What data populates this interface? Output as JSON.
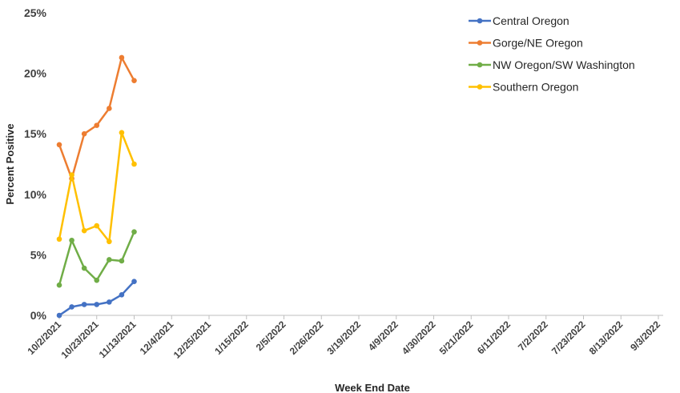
{
  "chart_data": {
    "type": "line",
    "xlabel": "Week End Date",
    "ylabel": "Percent Positive",
    "ylim": [
      0,
      25
    ],
    "y_ticks": [
      "0%",
      "5%",
      "10%",
      "15%",
      "20%",
      "25%"
    ],
    "x_tick_labels": [
      "10/2/2021",
      "10/23/2021",
      "11/13/2021",
      "12/4/2021",
      "12/25/2021",
      "1/15/2022",
      "2/5/2022",
      "2/26/2022",
      "3/19/2022",
      "4/9/2022",
      "4/30/2022",
      "5/21/2022",
      "6/11/2022",
      "7/2/2022",
      "7/23/2022",
      "8/13/2022",
      "9/3/2022"
    ],
    "x_dates": [
      "10/2/2021",
      "10/9/2021",
      "10/16/2021",
      "10/23/2021",
      "10/30/2021",
      "11/6/2021",
      "11/13/2021"
    ],
    "grid": false,
    "legend_position": "top-right",
    "series": [
      {
        "name": "Central Oregon",
        "color": "#4472C4",
        "values": [
          0.0,
          0.7,
          0.9,
          0.9,
          1.1,
          1.7,
          2.8
        ]
      },
      {
        "name": "Gorge/NE Oregon",
        "color": "#ED7D31",
        "values": [
          14.1,
          11.3,
          15.0,
          15.7,
          17.1,
          21.3,
          19.4
        ]
      },
      {
        "name": "NW Oregon/SW Washington",
        "color": "#70AD47",
        "values": [
          2.5,
          6.2,
          3.9,
          2.9,
          4.6,
          4.5,
          6.9
        ]
      },
      {
        "name": "Southern Oregon",
        "color": "#FFC000",
        "values": [
          6.3,
          11.6,
          7.0,
          7.4,
          6.1,
          15.1,
          12.5
        ]
      }
    ]
  }
}
